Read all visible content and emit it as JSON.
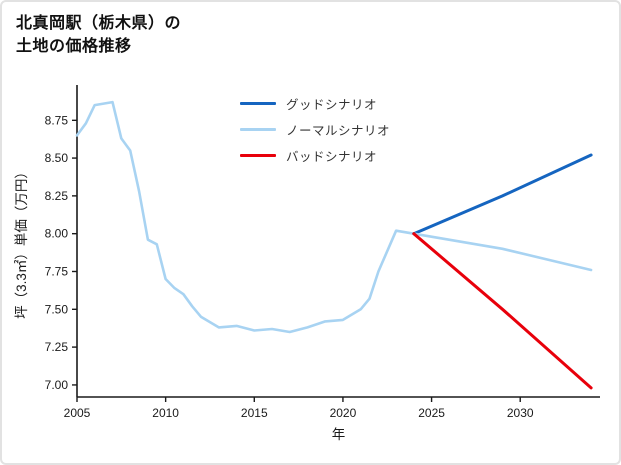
{
  "page": {
    "title_line1": "北真岡駅（栃木県）の",
    "title_line2": "土地の価格推移"
  },
  "legend": {
    "items": [
      {
        "label": "グッドシナリオ",
        "color": "#1565c0"
      },
      {
        "label": "ノーマルシナリオ",
        "color": "#a8d3f2"
      },
      {
        "label": "バッドシナリオ",
        "color": "#e8000b"
      }
    ]
  },
  "chart_data": {
    "type": "line",
    "title": "北真岡駅（栃木県）の土地の価格推移",
    "xlabel": "年",
    "ylabel": "坪（3.3㎡）単価（万円）",
    "xlim": [
      2005,
      2034.5
    ],
    "ylim": [
      6.92,
      8.97
    ],
    "xticks": [
      2005,
      2010,
      2015,
      2020,
      2025,
      2030
    ],
    "yticks": [
      7.0,
      7.25,
      7.5,
      7.75,
      8.0,
      8.25,
      8.5,
      8.75
    ],
    "grid": false,
    "legend_position": "upper-center-inside",
    "axis_color": "#1a1a1a",
    "series": [
      {
        "name": "historical",
        "color": "#a8d3f2",
        "width": 2.6,
        "in_legend": false,
        "points": [
          [
            2005,
            8.65
          ],
          [
            2005.5,
            8.73
          ],
          [
            2006,
            8.85
          ],
          [
            2006.5,
            8.86
          ],
          [
            2007,
            8.87
          ],
          [
            2007.5,
            8.63
          ],
          [
            2008,
            8.55
          ],
          [
            2008.5,
            8.28
          ],
          [
            2009,
            7.96
          ],
          [
            2009.5,
            7.93
          ],
          [
            2010,
            7.7
          ],
          [
            2010.5,
            7.64
          ],
          [
            2011,
            7.6
          ],
          [
            2011.5,
            7.52
          ],
          [
            2012,
            7.45
          ],
          [
            2013,
            7.38
          ],
          [
            2014,
            7.39
          ],
          [
            2015,
            7.36
          ],
          [
            2016,
            7.37
          ],
          [
            2017,
            7.35
          ],
          [
            2018,
            7.38
          ],
          [
            2019,
            7.42
          ],
          [
            2020,
            7.43
          ],
          [
            2021,
            7.5
          ],
          [
            2021.5,
            7.57
          ],
          [
            2022,
            7.75
          ],
          [
            2023,
            8.02
          ],
          [
            2024,
            8.0
          ]
        ]
      },
      {
        "name": "good-scenario",
        "color": "#1565c0",
        "width": 3,
        "in_legend": true,
        "points": [
          [
            2024,
            8.0
          ],
          [
            2029,
            8.25
          ],
          [
            2034,
            8.52
          ]
        ]
      },
      {
        "name": "normal-scenario",
        "color": "#a8d3f2",
        "width": 2.6,
        "in_legend": true,
        "points": [
          [
            2024,
            8.0
          ],
          [
            2029,
            7.9
          ],
          [
            2034,
            7.76
          ]
        ]
      },
      {
        "name": "bad-scenario",
        "color": "#e8000b",
        "width": 3,
        "in_legend": true,
        "points": [
          [
            2024,
            8.0
          ],
          [
            2029,
            7.5
          ],
          [
            2034,
            6.98
          ]
        ]
      }
    ]
  }
}
